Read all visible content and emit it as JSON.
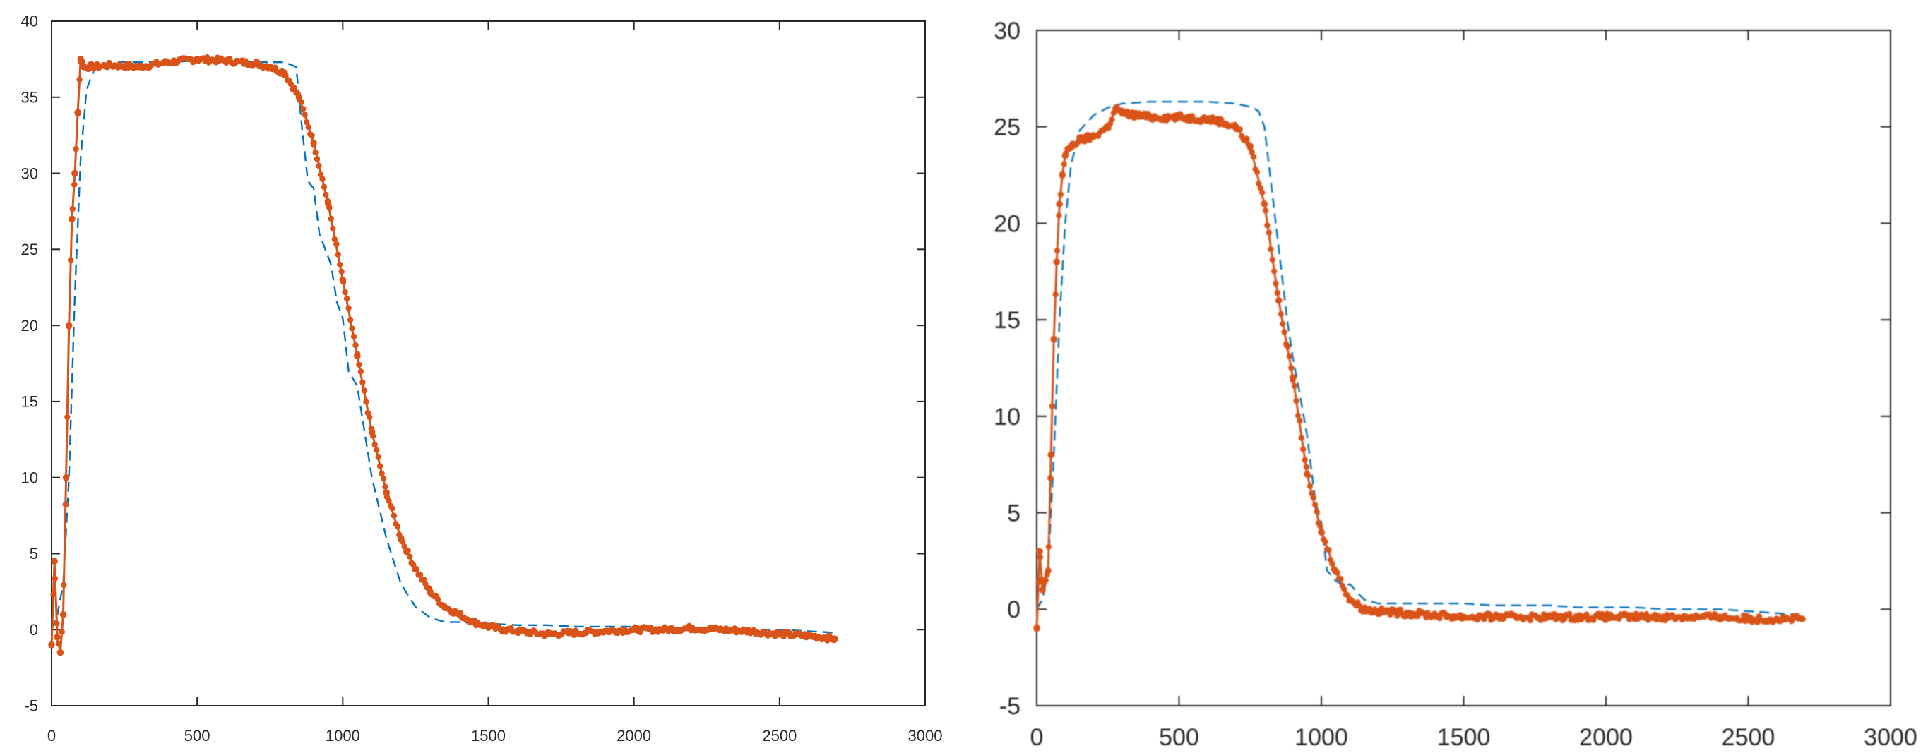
{
  "colors": {
    "measured": "#d95319",
    "model": "#0072bd",
    "axis": "#262626",
    "background": "#ffffff"
  },
  "chart_data": [
    {
      "type": "line",
      "title": "",
      "xlabel": "",
      "ylabel": "",
      "xlim": [
        0,
        3000
      ],
      "ylim": [
        -5,
        40
      ],
      "x_ticks": [
        "0",
        "500",
        "1000",
        "1500",
        "2000",
        "2500",
        "3000"
      ],
      "y_ticks": [
        "-5",
        "0",
        "5",
        "10",
        "15",
        "20",
        "25",
        "30",
        "35",
        "40"
      ],
      "grid": false,
      "legend": "none",
      "series": [
        {
          "style": "solid-dotted",
          "color": "#d95319",
          "x": [
            0,
            10,
            20,
            30,
            40,
            50,
            60,
            70,
            80,
            90,
            100,
            105,
            110,
            150,
            200,
            300,
            400,
            500,
            600,
            700,
            750,
            800,
            850,
            900,
            950,
            1000,
            1050,
            1100,
            1150,
            1200,
            1250,
            1300,
            1350,
            1400,
            1450,
            1500,
            1550,
            1600,
            1700,
            1800,
            1900,
            2000,
            2100,
            2200,
            2300,
            2400,
            2500,
            2600,
            2690
          ],
          "y": [
            -1,
            4.5,
            -0.5,
            -1.5,
            1,
            10,
            20,
            27,
            30,
            34,
            37.5,
            37.3,
            37,
            37,
            37.1,
            37,
            37.3,
            37.5,
            37.4,
            37.2,
            37,
            36.6,
            35,
            32,
            28,
            23,
            18,
            13,
            9,
            6,
            4,
            2.5,
            1.5,
            1,
            0.5,
            0.2,
            0,
            -0.1,
            -0.3,
            -0.2,
            -0.1,
            0,
            0,
            0.1,
            0,
            -0.1,
            -0.3,
            -0.4,
            -0.6
          ]
        },
        {
          "style": "dashed",
          "color": "#0072bd",
          "x": [
            0,
            20,
            40,
            60,
            80,
            100,
            120,
            150,
            200,
            300,
            400,
            500,
            600,
            700,
            800,
            840,
            860,
            880,
            900,
            920,
            940,
            960,
            980,
            1000,
            1020,
            1050,
            1100,
            1150,
            1200,
            1250,
            1300,
            1350,
            1400,
            1500,
            1600,
            1700,
            1800,
            1900,
            2000,
            2100,
            2200,
            2300,
            2400,
            2500,
            2600,
            2690
          ],
          "y": [
            0,
            1,
            3,
            10,
            22,
            31,
            35.5,
            37,
            37.3,
            37.3,
            37.3,
            37.4,
            37.4,
            37.3,
            37.3,
            37,
            33,
            29.5,
            29,
            26,
            25,
            24,
            21.5,
            20.5,
            17,
            16,
            10,
            6,
            3,
            1.5,
            0.8,
            0.5,
            0.5,
            0.4,
            0.3,
            0.3,
            0.2,
            0.2,
            0.2,
            0.1,
            0.1,
            0.1,
            0,
            0,
            -0.1,
            -0.2
          ]
        }
      ]
    },
    {
      "type": "line",
      "title": "",
      "xlabel": "",
      "ylabel": "",
      "xlim": [
        0,
        3000
      ],
      "ylim": [
        -5,
        30
      ],
      "x_ticks": [
        "0",
        "500",
        "1000",
        "1500",
        "2000",
        "2500",
        "3000"
      ],
      "y_ticks": [
        "-5",
        "0",
        "5",
        "10",
        "15",
        "20",
        "25",
        "30"
      ],
      "grid": false,
      "legend": "none",
      "series": [
        {
          "style": "solid-dotted",
          "color": "#d95319",
          "x": [
            0,
            10,
            20,
            30,
            40,
            50,
            60,
            70,
            80,
            90,
            100,
            120,
            150,
            200,
            250,
            280,
            300,
            400,
            500,
            600,
            640,
            700,
            750,
            800,
            850,
            900,
            950,
            1000,
            1050,
            1100,
            1150,
            1200,
            1300,
            1400,
            1500,
            1600,
            1700,
            1800,
            1900,
            2000,
            2100,
            2200,
            2300,
            2400,
            2500,
            2600,
            2690
          ],
          "y": [
            -1,
            3,
            1,
            1.5,
            2,
            8,
            14,
            18,
            21,
            22.5,
            23.5,
            24,
            24.3,
            24.5,
            25,
            26,
            25.7,
            25.5,
            25.5,
            25.4,
            25.3,
            25,
            24,
            21,
            16,
            12,
            7,
            4,
            2,
            0.5,
            0,
            -0.1,
            -0.2,
            -0.3,
            -0.4,
            -0.4,
            -0.4,
            -0.4,
            -0.4,
            -0.4,
            -0.4,
            -0.4,
            -0.4,
            -0.4,
            -0.5,
            -0.5,
            -0.5
          ]
        },
        {
          "style": "dashed",
          "color": "#0072bd",
          "x": [
            0,
            20,
            40,
            60,
            80,
            100,
            120,
            150,
            200,
            250,
            300,
            400,
            500,
            600,
            700,
            760,
            780,
            800,
            840,
            880,
            900,
            920,
            950,
            980,
            1000,
            1020,
            1050,
            1080,
            1100,
            1150,
            1200,
            1300,
            1400,
            1500,
            1600,
            1700,
            1800,
            1900,
            2000,
            2100,
            2200,
            2300,
            2400,
            2500,
            2600,
            2690
          ],
          "y": [
            0,
            0.5,
            2,
            8,
            15,
            20,
            23,
            24.8,
            25.6,
            26,
            26.2,
            26.3,
            26.3,
            26.3,
            26.2,
            26,
            25.8,
            25,
            20,
            15,
            13,
            11.5,
            9,
            5.5,
            4.5,
            2,
            1.5,
            1.2,
            1.3,
            0.5,
            0.3,
            0.3,
            0.3,
            0.3,
            0.2,
            0.2,
            0.2,
            0.1,
            0.1,
            0.1,
            0,
            0,
            0,
            -0.1,
            -0.2,
            -0.3
          ]
        }
      ]
    }
  ]
}
